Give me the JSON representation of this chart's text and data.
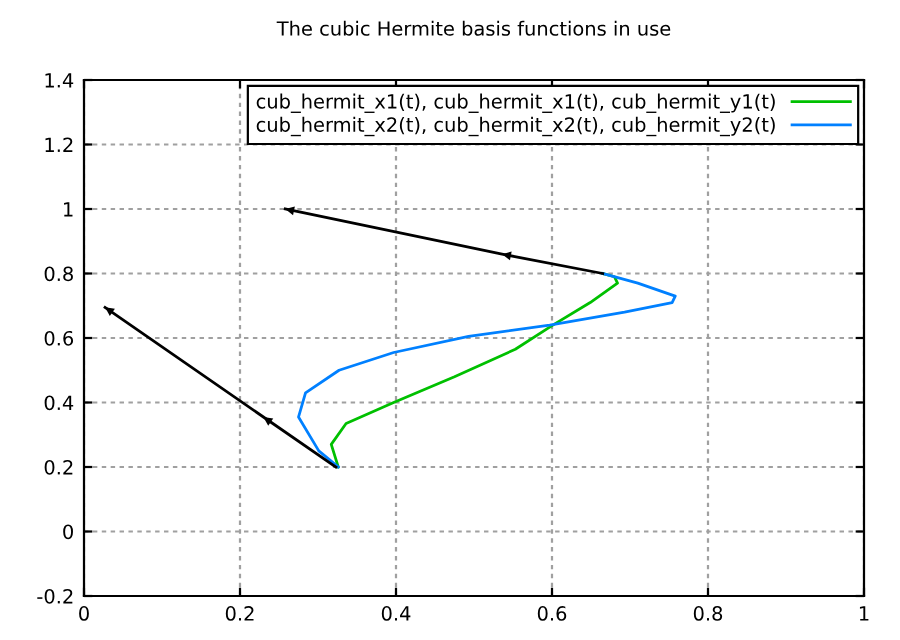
{
  "chart_data": {
    "type": "line",
    "title": "The cubic Hermite basis functions in use",
    "xlim": [
      0,
      1
    ],
    "xticks": [
      0,
      0.2,
      0.4,
      0.6,
      0.8,
      1
    ],
    "ylim": [
      -0.2,
      1.4
    ],
    "yticks": [
      -0.2,
      0,
      0.2,
      0.4,
      0.6,
      0.8,
      1,
      1.2,
      1.4
    ],
    "grid": true,
    "legend": "top right",
    "series": [
      {
        "name": "cub_hermit_x1(t), cub_hermit_x1(t), cub_hermit_y1(t)",
        "color": "#00c000",
        "x": [
          0.326,
          0.317,
          0.336,
          0.397,
          0.475,
          0.553,
          0.601,
          0.649,
          0.684,
          0.68,
          0.665
        ],
        "values": [
          0.2,
          0.27,
          0.335,
          0.4,
          0.48,
          0.565,
          0.64,
          0.71,
          0.77,
          0.79,
          0.8
        ]
      },
      {
        "name": "cub_hermit_x2(t), cub_hermit_x2(t), cub_hermit_y2(t)",
        "color": "#0080ff",
        "x": [
          0.326,
          0.301,
          0.275,
          0.284,
          0.327,
          0.397,
          0.493,
          0.597,
          0.693,
          0.754,
          0.758,
          0.71,
          0.665
        ],
        "values": [
          0.2,
          0.25,
          0.355,
          0.43,
          0.5,
          0.555,
          0.605,
          0.64,
          0.68,
          0.71,
          0.73,
          0.77,
          0.8
        ]
      },
      {
        "type": "line",
        "color": "#000000",
        "x": [
          0.665,
          0.536,
          0.258
        ],
        "values": [
          0.8,
          0.86,
          1.0
        ]
      },
      {
        "type": "line",
        "color": "#000000",
        "x": [
          0.323,
          0.23,
          0.027
        ],
        "values": [
          0.2,
          0.355,
          0.695
        ]
      }
    ]
  }
}
